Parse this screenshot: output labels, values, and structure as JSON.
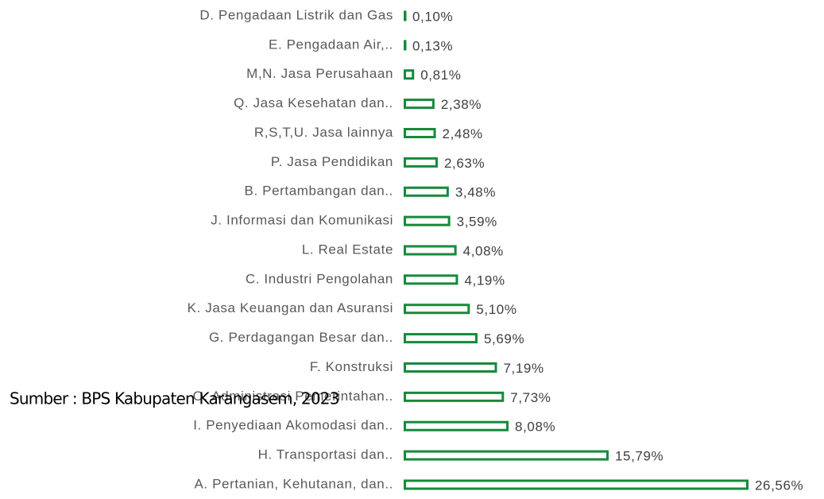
{
  "chart_data": {
    "type": "bar",
    "orientation": "horizontal",
    "categories": [
      "D. Pengadaan Listrik dan Gas",
      "E. Pengadaan Air,..",
      "M,N. Jasa Perusahaan",
      "Q. Jasa Kesehatan dan..",
      "R,S,T,U. Jasa lainnya",
      "P. Jasa Pendidikan",
      "B. Pertambangan dan..",
      "J. Informasi dan Komunikasi",
      "L. Real Estate",
      "C. Industri Pengolahan",
      "K. Jasa Keuangan dan Asuransi",
      "G. Perdagangan Besar dan..",
      "F. Konstruksi",
      "O. Administrasi Pemerintahan..",
      "I. Penyediaan Akomodasi dan..",
      "H. Transportasi dan..",
      "A. Pertanian, Kehutanan, dan.."
    ],
    "values": [
      0.1,
      0.13,
      0.81,
      2.38,
      2.48,
      2.63,
      3.48,
      3.59,
      4.08,
      4.19,
      5.1,
      5.69,
      7.19,
      7.73,
      8.08,
      15.79,
      26.56
    ],
    "value_labels": [
      "0,10%",
      "0,13%",
      "0,81%",
      "2,38%",
      "2,48%",
      "2,63%",
      "3,48%",
      "3,59%",
      "4,08%",
      "4,19%",
      "5,10%",
      "5,69%",
      "7,19%",
      "7,73%",
      "8,08%",
      "15,79%",
      "26,56%"
    ],
    "color": "#168a3c",
    "annotation": "Sumber : BPS Kabupaten Karangasem, 2023"
  }
}
